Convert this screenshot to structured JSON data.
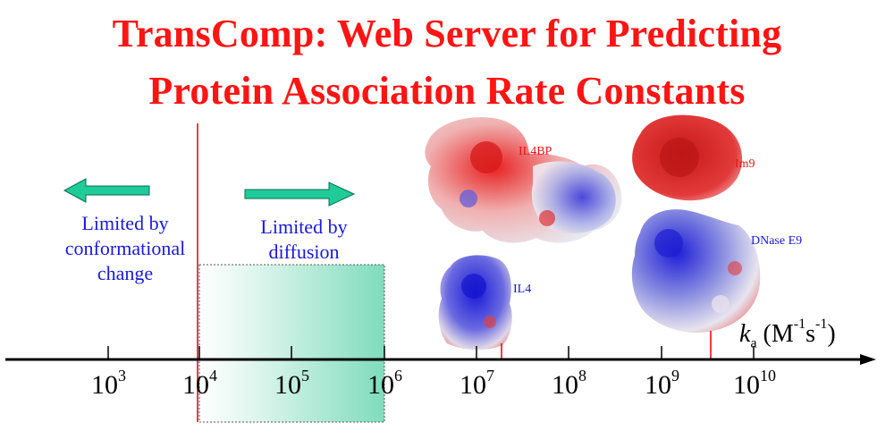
{
  "title": {
    "line1": "TransComp: Web Server for Predicting",
    "line2": "Protein Association Rate Constants"
  },
  "notes": {
    "conformational": [
      "Limited by",
      "conformational",
      "change"
    ],
    "diffusion": [
      "Limited by",
      "diffusion"
    ]
  },
  "axis": {
    "symbol": "k",
    "subscript": "a",
    "unit_open": "(M",
    "unit_exp1": "-1",
    "unit_mid": "s",
    "unit_exp2": "-1",
    "unit_close": ")",
    "ticks": [
      {
        "base": "10",
        "exp": "3"
      },
      {
        "base": "10",
        "exp": "4"
      },
      {
        "base": "10",
        "exp": "5"
      },
      {
        "base": "10",
        "exp": "6"
      },
      {
        "base": "10",
        "exp": "7"
      },
      {
        "base": "10",
        "exp": "8"
      },
      {
        "base": "10",
        "exp": "9"
      },
      {
        "base": "10",
        "exp": "10"
      }
    ]
  },
  "proteins": {
    "il4bp": "IL4BP",
    "im9": "Im9",
    "il4": "IL4",
    "dnase": "DNase E9"
  },
  "colors": {
    "title": "#ff1414",
    "note_text": "#1a1ad6",
    "arrow": "#1fcc99",
    "marker_line": "#e60000",
    "band": "#21c896"
  }
}
